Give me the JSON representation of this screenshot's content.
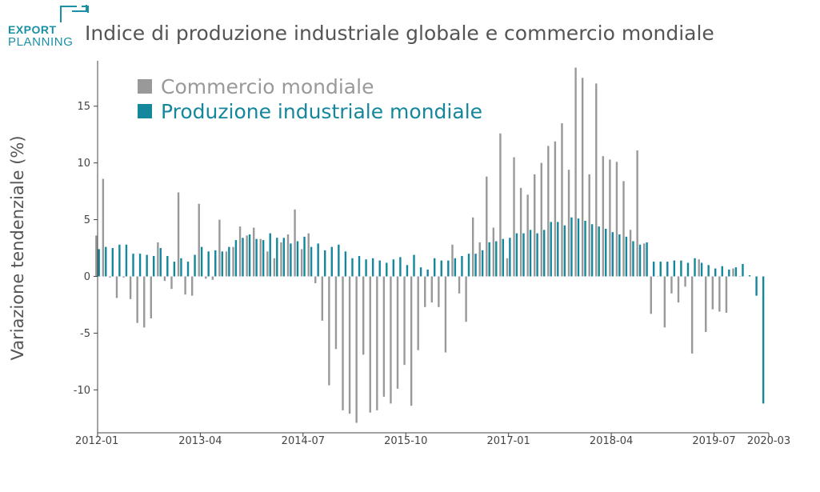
{
  "logo": {
    "line1": "EXPORT",
    "line2": "PLANNING",
    "icon": "square-bracket-logo-icon",
    "color": "#1a8fa6"
  },
  "chart_data": {
    "type": "bar",
    "title": "Indice di produzione industriale globale e commercio mondiale",
    "ylabel": "Variazione tendenziale (%)",
    "xlabel": "",
    "ylim": [
      -13.5,
      19
    ],
    "yticks": [
      -10,
      -5,
      0,
      5,
      10,
      15
    ],
    "xticks": [
      "2012-01",
      "2013-04",
      "2014-07",
      "2015-10",
      "2017-01",
      "2018-04",
      "2019-07",
      "2020-03"
    ],
    "x_start": "2012-01",
    "legend_position": "top-left",
    "grid": false,
    "series": [
      {
        "name": "Commercio mondiale",
        "color": "#999999",
        "values": [
          3.6,
          8.6,
          -0.1,
          -1.9,
          -0.1,
          -2.0,
          -4.1,
          -4.5,
          -3.7,
          3.0,
          -0.4,
          -1.1,
          7.4,
          -1.6,
          -1.7,
          6.4,
          -0.2,
          -0.3,
          5.0,
          2.2,
          2.6,
          4.4,
          3.6,
          4.3,
          3.3,
          2.2,
          1.6,
          3.0,
          3.7,
          5.9,
          2.4,
          3.8,
          -0.6,
          -3.9,
          -9.6,
          -6.4,
          -11.8,
          -12.1,
          -12.9,
          -6.9,
          -12.0,
          -11.8,
          -10.6,
          -11.2,
          -9.9,
          -7.8,
          -11.4,
          -6.5,
          -2.7,
          -2.3,
          -2.7,
          -6.7,
          2.8,
          -1.5,
          -4.0,
          5.2,
          3.0,
          8.8,
          4.3,
          12.6,
          1.6,
          10.5,
          7.8,
          7.2,
          9.0,
          10.0,
          11.5,
          11.9,
          13.5,
          9.4,
          18.4,
          17.5,
          9.0,
          17.0,
          10.6,
          10.3,
          10.1,
          8.4,
          4.1,
          11.1,
          2.9,
          -3.3,
          0.0,
          -4.5,
          -1.5,
          -2.3,
          -0.9,
          -6.8,
          1.5,
          -4.9,
          -2.9,
          -3.1,
          -3.2,
          0.7,
          0.0
        ],
        "x_offset_months": 0
      },
      {
        "name": "Produzione industriale mondiale",
        "color": "#14879c",
        "values": [
          2.4,
          2.6,
          2.5,
          2.8,
          2.8,
          2.0,
          2.0,
          1.9,
          1.8,
          2.5,
          1.8,
          1.3,
          1.6,
          1.3,
          1.9,
          2.6,
          2.2,
          2.3,
          2.2,
          2.6,
          3.2,
          3.4,
          3.7,
          3.3,
          3.2,
          3.8,
          3.4,
          3.4,
          2.9,
          3.1,
          3.5,
          2.6,
          2.9,
          2.3,
          2.6,
          2.8,
          2.2,
          1.6,
          1.8,
          1.5,
          1.6,
          1.4,
          1.2,
          1.5,
          1.7,
          1.0,
          1.9,
          0.8,
          0.6,
          1.6,
          1.4,
          1.4,
          1.6,
          1.8,
          2.0,
          2.0,
          2.3,
          3.0,
          3.1,
          3.3,
          3.4,
          3.8,
          3.8,
          4.1,
          3.8,
          4.1,
          4.8,
          4.8,
          4.5,
          5.2,
          5.1,
          4.9,
          4.6,
          4.4,
          4.2,
          3.9,
          3.7,
          3.5,
          3.1,
          2.8,
          3.0,
          1.3,
          1.3,
          1.3,
          1.4,
          1.4,
          1.2,
          1.6,
          1.2,
          1.0,
          0.7,
          0.9,
          0.6,
          0.8,
          1.1,
          0.1,
          -1.7,
          -11.2
        ],
        "x_offset_months": 0
      }
    ]
  }
}
